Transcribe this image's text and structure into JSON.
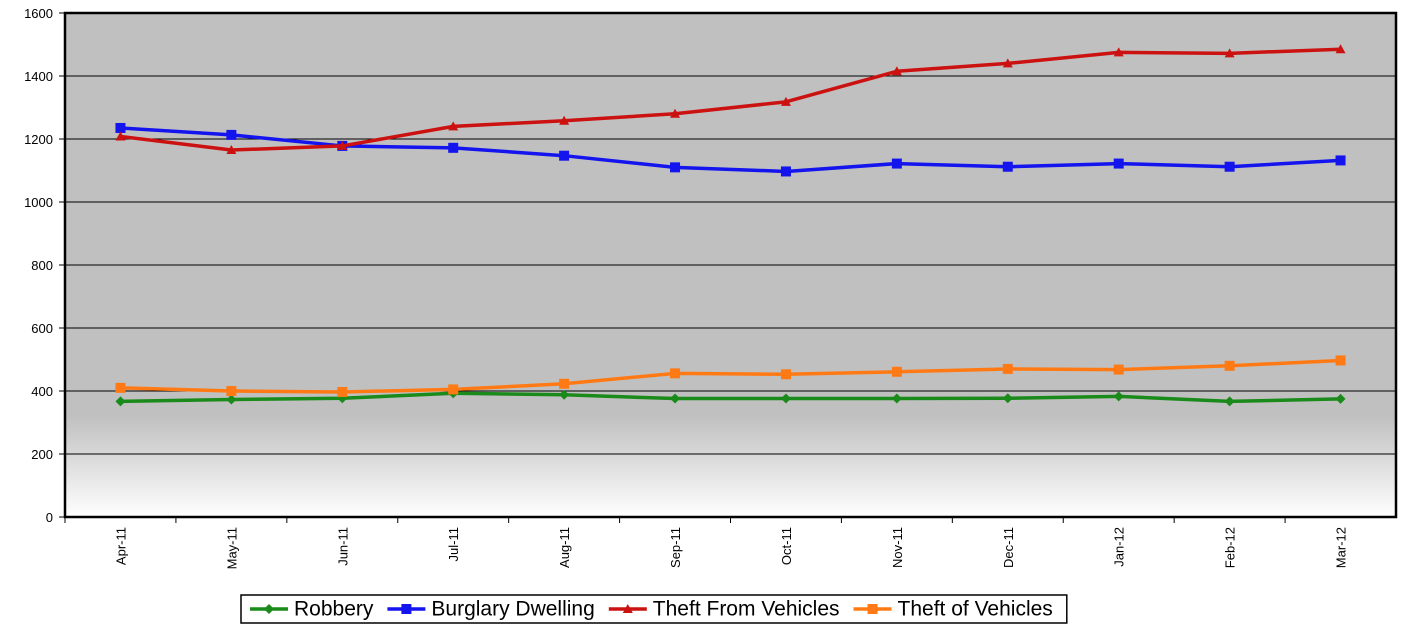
{
  "chart_data": {
    "type": "line",
    "categories": [
      "Apr-11",
      "May-11",
      "Jun-11",
      "Jul-11",
      "Aug-11",
      "Sep-11",
      "Oct-11",
      "Nov-11",
      "Dec-11",
      "Jan-12",
      "Feb-12",
      "Mar-12"
    ],
    "series": [
      {
        "name": "Robbery",
        "color": "#1a8a1a",
        "marker": "diamond",
        "values": [
          367,
          373,
          377,
          393,
          388,
          376,
          376,
          376,
          377,
          383,
          367,
          375
        ]
      },
      {
        "name": "Burglary Dwelling",
        "color": "#1414ee",
        "marker": "square",
        "values": [
          1235,
          1213,
          1178,
          1172,
          1147,
          1110,
          1097,
          1122,
          1112,
          1122,
          1112,
          1132
        ]
      },
      {
        "name": "Theft From Vehicles",
        "color": "#cc1111",
        "marker": "triangle",
        "values": [
          1208,
          1165,
          1178,
          1240,
          1258,
          1280,
          1318,
          1415,
          1440,
          1475,
          1472,
          1485
        ]
      },
      {
        "name": "Theft of Vehicles",
        "color": "#ff7a14",
        "marker": "square",
        "values": [
          410,
          400,
          397,
          405,
          423,
          456,
          453,
          461,
          470,
          468,
          480,
          497
        ]
      }
    ],
    "ylim": [
      0,
      1600
    ],
    "yticks": [
      0,
      200,
      400,
      600,
      800,
      1000,
      1200,
      1400,
      1600
    ],
    "grid": true
  }
}
